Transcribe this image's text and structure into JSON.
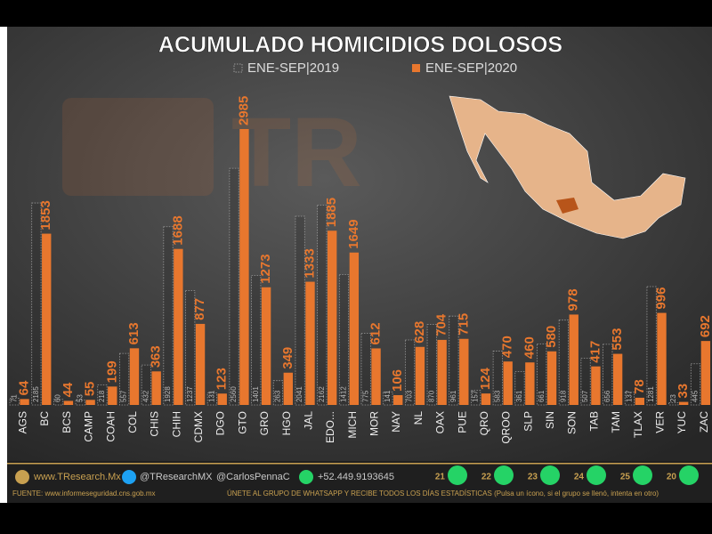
{
  "chart_data": {
    "type": "bar",
    "title": "ACUMULADO HOMICIDIOS DOLOSOS",
    "categories": [
      "AGS",
      "BC",
      "BCS",
      "CAMP",
      "COAH",
      "COL",
      "CHIS",
      "CHIH",
      "CDMX",
      "DGO",
      "GTO",
      "GRO",
      "HGO",
      "JAL",
      "EDO...",
      "MICH",
      "MOR",
      "NAY",
      "NL",
      "OAX",
      "PUE",
      "QRO",
      "QROO",
      "SLP",
      "SIN",
      "SON",
      "TAB",
      "TAM",
      "TLAX",
      "VER",
      "YUC",
      "ZAC"
    ],
    "series": [
      {
        "name": "ENE-SEP|2019",
        "color": "#9a9a9a",
        "values": [
          71,
          2185,
          60,
          53,
          218,
          557,
          432,
          1928,
          1237,
          131,
          2560,
          1401,
          263,
          2041,
          2162,
          1412,
          775,
          141,
          703,
          870,
          961,
          157,
          583,
          361,
          661,
          918,
          507,
          656,
          137,
          1281,
          23,
          445
        ]
      },
      {
        "name": "ENE-SEP|2020",
        "color": "#e8772e",
        "values": [
          64,
          1853,
          44,
          55,
          199,
          613,
          363,
          1688,
          877,
          123,
          2985,
          1273,
          349,
          1333,
          1885,
          1649,
          612,
          106,
          628,
          704,
          715,
          124,
          470,
          460,
          580,
          978,
          417,
          553,
          78,
          996,
          33,
          692
        ]
      }
    ]
  },
  "footer": {
    "web": "www.TResearch.Mx",
    "twitter": "@TResearchMX",
    "twitter2": "@CarlosPennaC",
    "phone": "+52.449.9193645",
    "groups": [
      "21",
      "22",
      "23",
      "24",
      "25",
      "20"
    ],
    "source": "FUENTE: www.informeseguridad.cns.gob.mx",
    "join": "ÚNETE AL GRUPO DE WHATSAPP Y RECIBE TODOS LOS DÍAS ESTADÍSTICAS (Pulsa un ícono, si el grupo se llenó, intenta en otro)"
  }
}
